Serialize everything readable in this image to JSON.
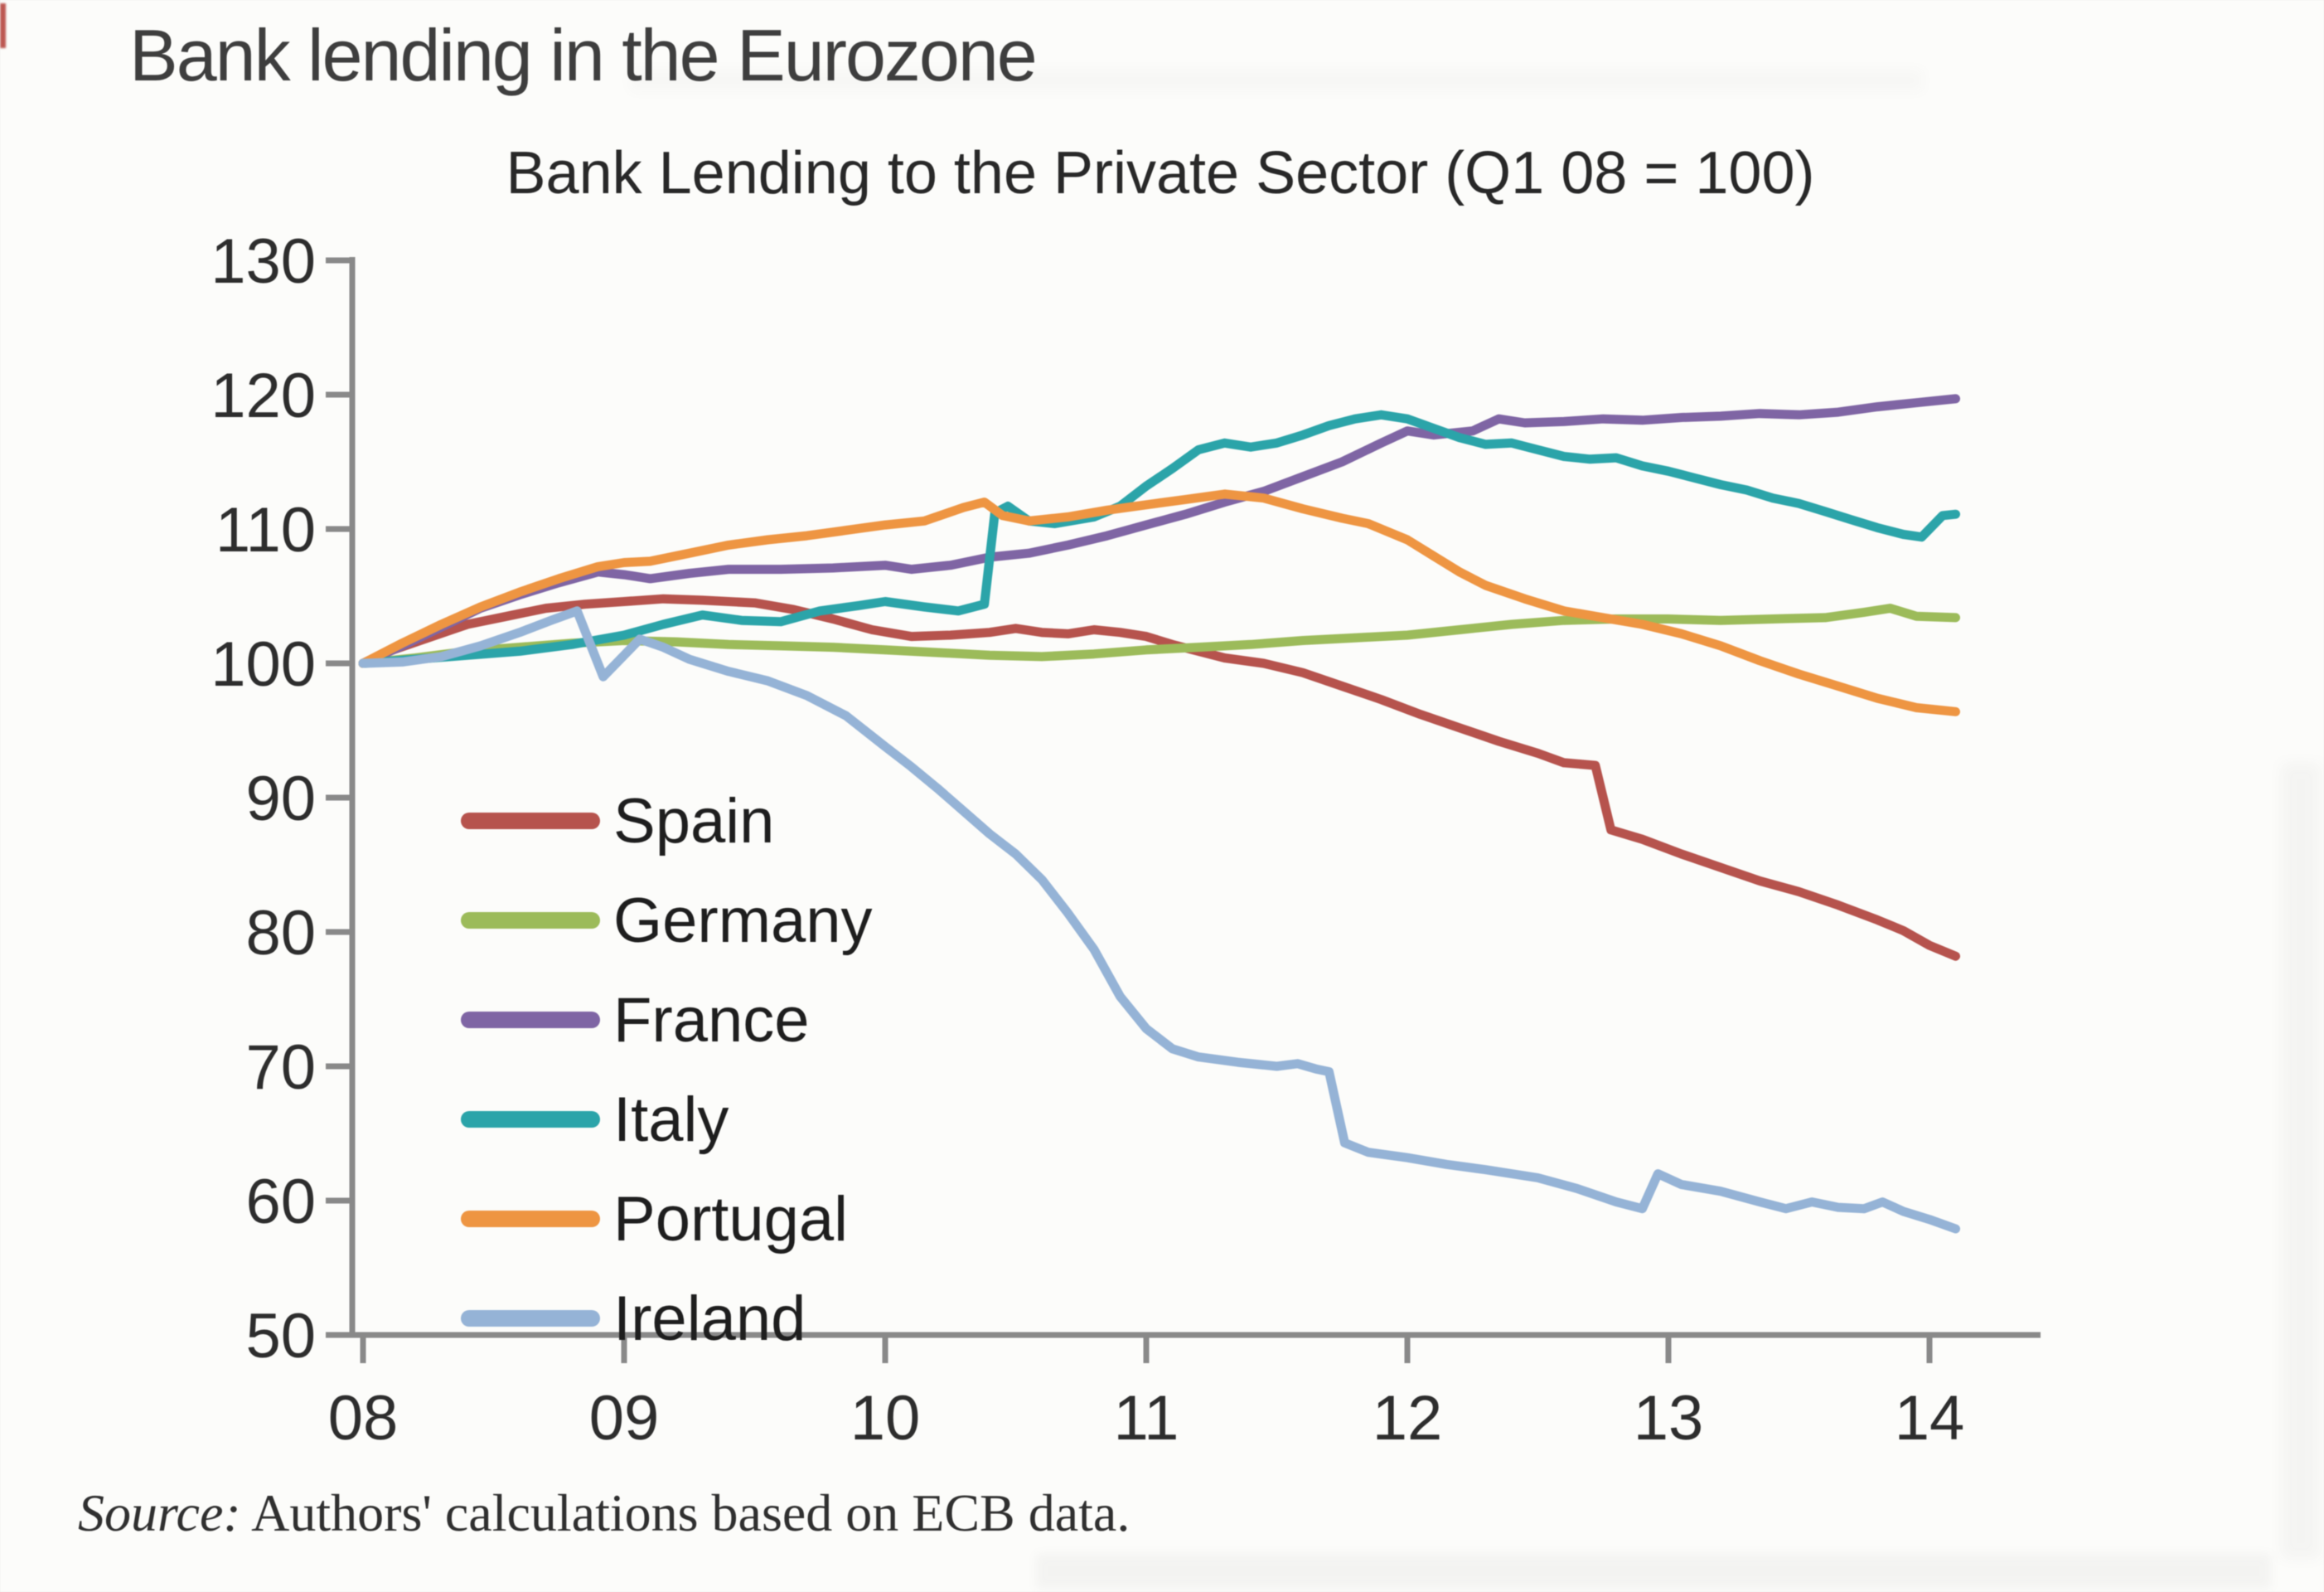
{
  "page_title": "Bank lending in the Eurozone",
  "source": {
    "prefix": "Source:",
    "text": " Authors' calculations based on ECB data."
  },
  "colors": {
    "axis": "#898989",
    "tick_text": "#2d2d2d",
    "title_text": "#282828"
  },
  "chart_data": {
    "type": "line",
    "title": "Bank Lending to the Private Sector (Q1 08 = 100)",
    "xlabel": "",
    "ylabel": "",
    "grid": false,
    "legend_position": "inside-left",
    "x_axis": {
      "tick_labels": [
        "08",
        "09",
        "10",
        "11",
        "12",
        "13",
        "14"
      ],
      "tick_values": [
        8,
        9,
        10,
        11,
        12,
        13,
        14
      ],
      "min": 8,
      "max": 14.42
    },
    "y_axis": {
      "tick_labels": [
        "130",
        "120",
        "110",
        "100",
        "90",
        "80",
        "70",
        "60",
        "50"
      ],
      "tick_values": [
        130,
        120,
        110,
        100,
        90,
        80,
        70,
        60,
        50
      ],
      "min": 50,
      "max": 130
    },
    "series": [
      {
        "name": "Spain",
        "color": "#b6534d",
        "points": [
          [
            8,
            100
          ],
          [
            8.1,
            100.9
          ],
          [
            8.25,
            101.9
          ],
          [
            8.4,
            102.9
          ],
          [
            8.55,
            103.5
          ],
          [
            8.7,
            104.1
          ],
          [
            8.85,
            104.4
          ],
          [
            9,
            104.6
          ],
          [
            9.15,
            104.8
          ],
          [
            9.3,
            104.7
          ],
          [
            9.5,
            104.5
          ],
          [
            9.65,
            104
          ],
          [
            9.8,
            103.3
          ],
          [
            9.95,
            102.5
          ],
          [
            10.1,
            102
          ],
          [
            10.25,
            102.1
          ],
          [
            10.4,
            102.3
          ],
          [
            10.5,
            102.6
          ],
          [
            10.6,
            102.3
          ],
          [
            10.7,
            102.2
          ],
          [
            10.8,
            102.5
          ],
          [
            10.9,
            102.3
          ],
          [
            11,
            102
          ],
          [
            11.1,
            101.4
          ],
          [
            11.2,
            100.9
          ],
          [
            11.3,
            100.4
          ],
          [
            11.45,
            100
          ],
          [
            11.6,
            99.3
          ],
          [
            11.75,
            98.3
          ],
          [
            11.9,
            97.3
          ],
          [
            12.05,
            96.2
          ],
          [
            12.2,
            95.2
          ],
          [
            12.35,
            94.2
          ],
          [
            12.5,
            93.3
          ],
          [
            12.6,
            92.6
          ],
          [
            12.72,
            92.4
          ],
          [
            12.78,
            87.6
          ],
          [
            12.9,
            86.9
          ],
          [
            13.05,
            85.8
          ],
          [
            13.2,
            84.8
          ],
          [
            13.35,
            83.8
          ],
          [
            13.5,
            83
          ],
          [
            13.65,
            82
          ],
          [
            13.8,
            80.9
          ],
          [
            13.9,
            80.1
          ],
          [
            14,
            79
          ],
          [
            14.1,
            78.2
          ]
        ]
      },
      {
        "name": "Germany",
        "color": "#9cbb5a",
        "points": [
          [
            8,
            100
          ],
          [
            8.2,
            100.4
          ],
          [
            8.4,
            100.9
          ],
          [
            8.6,
            101.2
          ],
          [
            8.8,
            101.5
          ],
          [
            9,
            101.7
          ],
          [
            9.2,
            101.6
          ],
          [
            9.4,
            101.4
          ],
          [
            9.6,
            101.3
          ],
          [
            9.8,
            101.2
          ],
          [
            10,
            101
          ],
          [
            10.2,
            100.8
          ],
          [
            10.4,
            100.6
          ],
          [
            10.6,
            100.5
          ],
          [
            10.8,
            100.7
          ],
          [
            11,
            101
          ],
          [
            11.2,
            101.2
          ],
          [
            11.4,
            101.4
          ],
          [
            11.6,
            101.7
          ],
          [
            11.8,
            101.9
          ],
          [
            12,
            102.1
          ],
          [
            12.2,
            102.5
          ],
          [
            12.4,
            102.9
          ],
          [
            12.6,
            103.2
          ],
          [
            12.8,
            103.3
          ],
          [
            13,
            103.3
          ],
          [
            13.2,
            103.2
          ],
          [
            13.4,
            103.3
          ],
          [
            13.6,
            103.4
          ],
          [
            13.75,
            103.8
          ],
          [
            13.85,
            104.1
          ],
          [
            13.95,
            103.5
          ],
          [
            14.1,
            103.4
          ]
        ]
      },
      {
        "name": "France",
        "color": "#7f65a4",
        "points": [
          [
            8,
            100
          ],
          [
            8.15,
            101.3
          ],
          [
            8.3,
            102.7
          ],
          [
            8.45,
            104.1
          ],
          [
            8.6,
            105.1
          ],
          [
            8.75,
            106
          ],
          [
            8.9,
            106.8
          ],
          [
            9,
            106.6
          ],
          [
            9.1,
            106.3
          ],
          [
            9.25,
            106.7
          ],
          [
            9.4,
            107
          ],
          [
            9.6,
            107
          ],
          [
            9.8,
            107.1
          ],
          [
            10,
            107.3
          ],
          [
            10.1,
            107
          ],
          [
            10.25,
            107.3
          ],
          [
            10.4,
            107.9
          ],
          [
            10.55,
            108.2
          ],
          [
            10.7,
            108.8
          ],
          [
            10.85,
            109.5
          ],
          [
            11,
            110.3
          ],
          [
            11.15,
            111.1
          ],
          [
            11.3,
            112
          ],
          [
            11.45,
            112.8
          ],
          [
            11.6,
            113.9
          ],
          [
            11.75,
            115
          ],
          [
            11.9,
            116.4
          ],
          [
            12,
            117.3
          ],
          [
            12.1,
            117
          ],
          [
            12.25,
            117.3
          ],
          [
            12.35,
            118.2
          ],
          [
            12.45,
            117.9
          ],
          [
            12.6,
            118
          ],
          [
            12.75,
            118.2
          ],
          [
            12.9,
            118.1
          ],
          [
            13.05,
            118.3
          ],
          [
            13.2,
            118.4
          ],
          [
            13.35,
            118.6
          ],
          [
            13.5,
            118.5
          ],
          [
            13.65,
            118.7
          ],
          [
            13.8,
            119.1
          ],
          [
            13.95,
            119.4
          ],
          [
            14.1,
            119.7
          ]
        ]
      },
      {
        "name": "Italy",
        "color": "#2ba4a9",
        "points": [
          [
            8,
            100
          ],
          [
            8.2,
            100.3
          ],
          [
            8.4,
            100.6
          ],
          [
            8.6,
            100.9
          ],
          [
            8.8,
            101.4
          ],
          [
            9,
            102.1
          ],
          [
            9.15,
            102.9
          ],
          [
            9.3,
            103.6
          ],
          [
            9.45,
            103.2
          ],
          [
            9.6,
            103.1
          ],
          [
            9.75,
            103.9
          ],
          [
            9.9,
            104.3
          ],
          [
            10,
            104.6
          ],
          [
            10.15,
            104.2
          ],
          [
            10.28,
            103.9
          ],
          [
            10.38,
            104.4
          ],
          [
            10.42,
            111.2
          ],
          [
            10.47,
            111.7
          ],
          [
            10.55,
            110.6
          ],
          [
            10.65,
            110.4
          ],
          [
            10.8,
            110.9
          ],
          [
            10.9,
            111.7
          ],
          [
            11,
            113.2
          ],
          [
            11.1,
            114.5
          ],
          [
            11.2,
            115.9
          ],
          [
            11.3,
            116.4
          ],
          [
            11.4,
            116.1
          ],
          [
            11.5,
            116.4
          ],
          [
            11.6,
            117
          ],
          [
            11.7,
            117.7
          ],
          [
            11.8,
            118.2
          ],
          [
            11.9,
            118.5
          ],
          [
            12,
            118.2
          ],
          [
            12.1,
            117.5
          ],
          [
            12.2,
            116.8
          ],
          [
            12.3,
            116.3
          ],
          [
            12.4,
            116.4
          ],
          [
            12.5,
            115.9
          ],
          [
            12.6,
            115.4
          ],
          [
            12.7,
            115.2
          ],
          [
            12.8,
            115.3
          ],
          [
            12.9,
            114.7
          ],
          [
            13,
            114.3
          ],
          [
            13.1,
            113.8
          ],
          [
            13.2,
            113.3
          ],
          [
            13.3,
            112.9
          ],
          [
            13.4,
            112.3
          ],
          [
            13.5,
            111.9
          ],
          [
            13.6,
            111.3
          ],
          [
            13.7,
            110.7
          ],
          [
            13.8,
            110.1
          ],
          [
            13.9,
            109.6
          ],
          [
            13.97,
            109.4
          ],
          [
            14.05,
            111
          ],
          [
            14.1,
            111.1
          ]
        ]
      },
      {
        "name": "Portugal",
        "color": "#ee9542",
        "points": [
          [
            8,
            100
          ],
          [
            8.15,
            101.5
          ],
          [
            8.3,
            102.9
          ],
          [
            8.45,
            104.2
          ],
          [
            8.6,
            105.3
          ],
          [
            8.75,
            106.3
          ],
          [
            8.9,
            107.2
          ],
          [
            9,
            107.5
          ],
          [
            9.1,
            107.6
          ],
          [
            9.25,
            108.2
          ],
          [
            9.4,
            108.8
          ],
          [
            9.55,
            109.2
          ],
          [
            9.7,
            109.5
          ],
          [
            9.85,
            109.9
          ],
          [
            10,
            110.3
          ],
          [
            10.15,
            110.6
          ],
          [
            10.3,
            111.6
          ],
          [
            10.38,
            112
          ],
          [
            10.45,
            111
          ],
          [
            10.55,
            110.6
          ],
          [
            10.7,
            110.9
          ],
          [
            10.85,
            111.4
          ],
          [
            11,
            111.8
          ],
          [
            11.15,
            112.2
          ],
          [
            11.3,
            112.6
          ],
          [
            11.45,
            112.3
          ],
          [
            11.6,
            111.5
          ],
          [
            11.75,
            110.8
          ],
          [
            11.85,
            110.4
          ],
          [
            12,
            109.2
          ],
          [
            12.1,
            108
          ],
          [
            12.2,
            106.8
          ],
          [
            12.3,
            105.8
          ],
          [
            12.45,
            104.8
          ],
          [
            12.6,
            103.9
          ],
          [
            12.75,
            103.4
          ],
          [
            12.9,
            102.9
          ],
          [
            13.05,
            102.2
          ],
          [
            13.2,
            101.3
          ],
          [
            13.35,
            100.2
          ],
          [
            13.5,
            99.2
          ],
          [
            13.65,
            98.3
          ],
          [
            13.8,
            97.4
          ],
          [
            13.95,
            96.7
          ],
          [
            14.1,
            96.4
          ]
        ]
      },
      {
        "name": "Ireland",
        "color": "#95b3d6",
        "points": [
          [
            8,
            100
          ],
          [
            8.15,
            100.1
          ],
          [
            8.3,
            100.5
          ],
          [
            8.45,
            101.3
          ],
          [
            8.6,
            102.3
          ],
          [
            8.72,
            103.2
          ],
          [
            8.82,
            103.9
          ],
          [
            8.92,
            99
          ],
          [
            9,
            100.6
          ],
          [
            9.06,
            101.8
          ],
          [
            9.15,
            101.2
          ],
          [
            9.25,
            100.3
          ],
          [
            9.4,
            99.4
          ],
          [
            9.55,
            98.7
          ],
          [
            9.7,
            97.6
          ],
          [
            9.85,
            96.1
          ],
          [
            10,
            93.8
          ],
          [
            10.1,
            92.3
          ],
          [
            10.2,
            90.7
          ],
          [
            10.3,
            89
          ],
          [
            10.4,
            87.3
          ],
          [
            10.5,
            85.8
          ],
          [
            10.6,
            83.9
          ],
          [
            10.7,
            81.4
          ],
          [
            10.8,
            78.7
          ],
          [
            10.9,
            75.2
          ],
          [
            11,
            72.8
          ],
          [
            11.1,
            71.3
          ],
          [
            11.2,
            70.7
          ],
          [
            11.35,
            70.3
          ],
          [
            11.5,
            70
          ],
          [
            11.58,
            70.2
          ],
          [
            11.65,
            69.8
          ],
          [
            11.7,
            69.6
          ],
          [
            11.76,
            64.3
          ],
          [
            11.85,
            63.6
          ],
          [
            12,
            63.2
          ],
          [
            12.15,
            62.7
          ],
          [
            12.3,
            62.3
          ],
          [
            12.5,
            61.7
          ],
          [
            12.65,
            60.9
          ],
          [
            12.8,
            59.9
          ],
          [
            12.9,
            59.4
          ],
          [
            12.96,
            62
          ],
          [
            13.05,
            61.2
          ],
          [
            13.2,
            60.7
          ],
          [
            13.35,
            59.9
          ],
          [
            13.45,
            59.4
          ],
          [
            13.55,
            59.9
          ],
          [
            13.65,
            59.5
          ],
          [
            13.75,
            59.4
          ],
          [
            13.82,
            59.9
          ],
          [
            13.9,
            59.2
          ],
          [
            14,
            58.6
          ],
          [
            14.1,
            57.9
          ]
        ]
      }
    ]
  }
}
